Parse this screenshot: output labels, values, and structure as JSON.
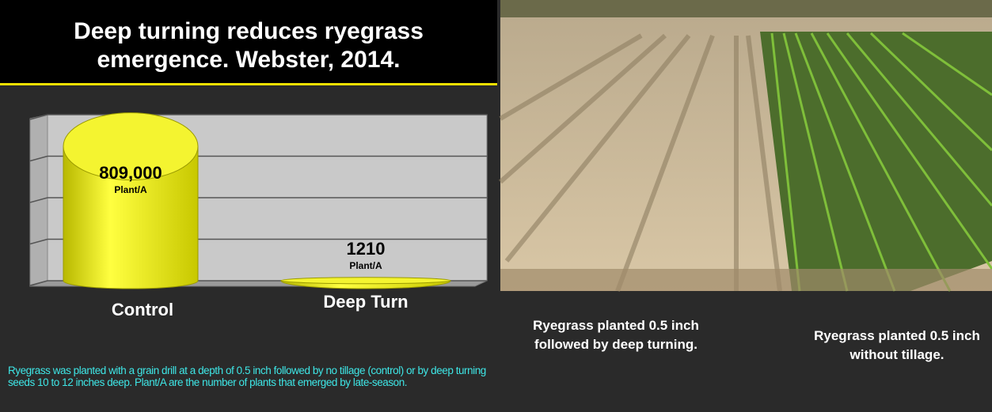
{
  "chart_data": {
    "type": "bar",
    "title": "Deep turning reduces ryegrass emergence.  Webster, 2014.",
    "categories": [
      "Control",
      "Deep Turn"
    ],
    "values": [
      809000,
      1210
    ],
    "value_labels": [
      "809,000",
      "1210"
    ],
    "unit_label": "Plant/A",
    "color": "#e8e800",
    "ylim": [
      0,
      1000000
    ],
    "yticks": [
      0,
      250000,
      500000,
      750000,
      1000000
    ],
    "grid": true,
    "footnote": "Ryegrass was planted with a grain drill at a depth of 0.5 inch followed by no tillage (control) or by deep turning seeds 10 to 12 inches deep.  Plant/A are the number of plants that emerged by late-season."
  },
  "photo": {
    "captions": [
      "Ryegrass planted 0.5 inch followed by deep turning.",
      "Ryegrass planted 0.5 inch without tillage."
    ]
  }
}
